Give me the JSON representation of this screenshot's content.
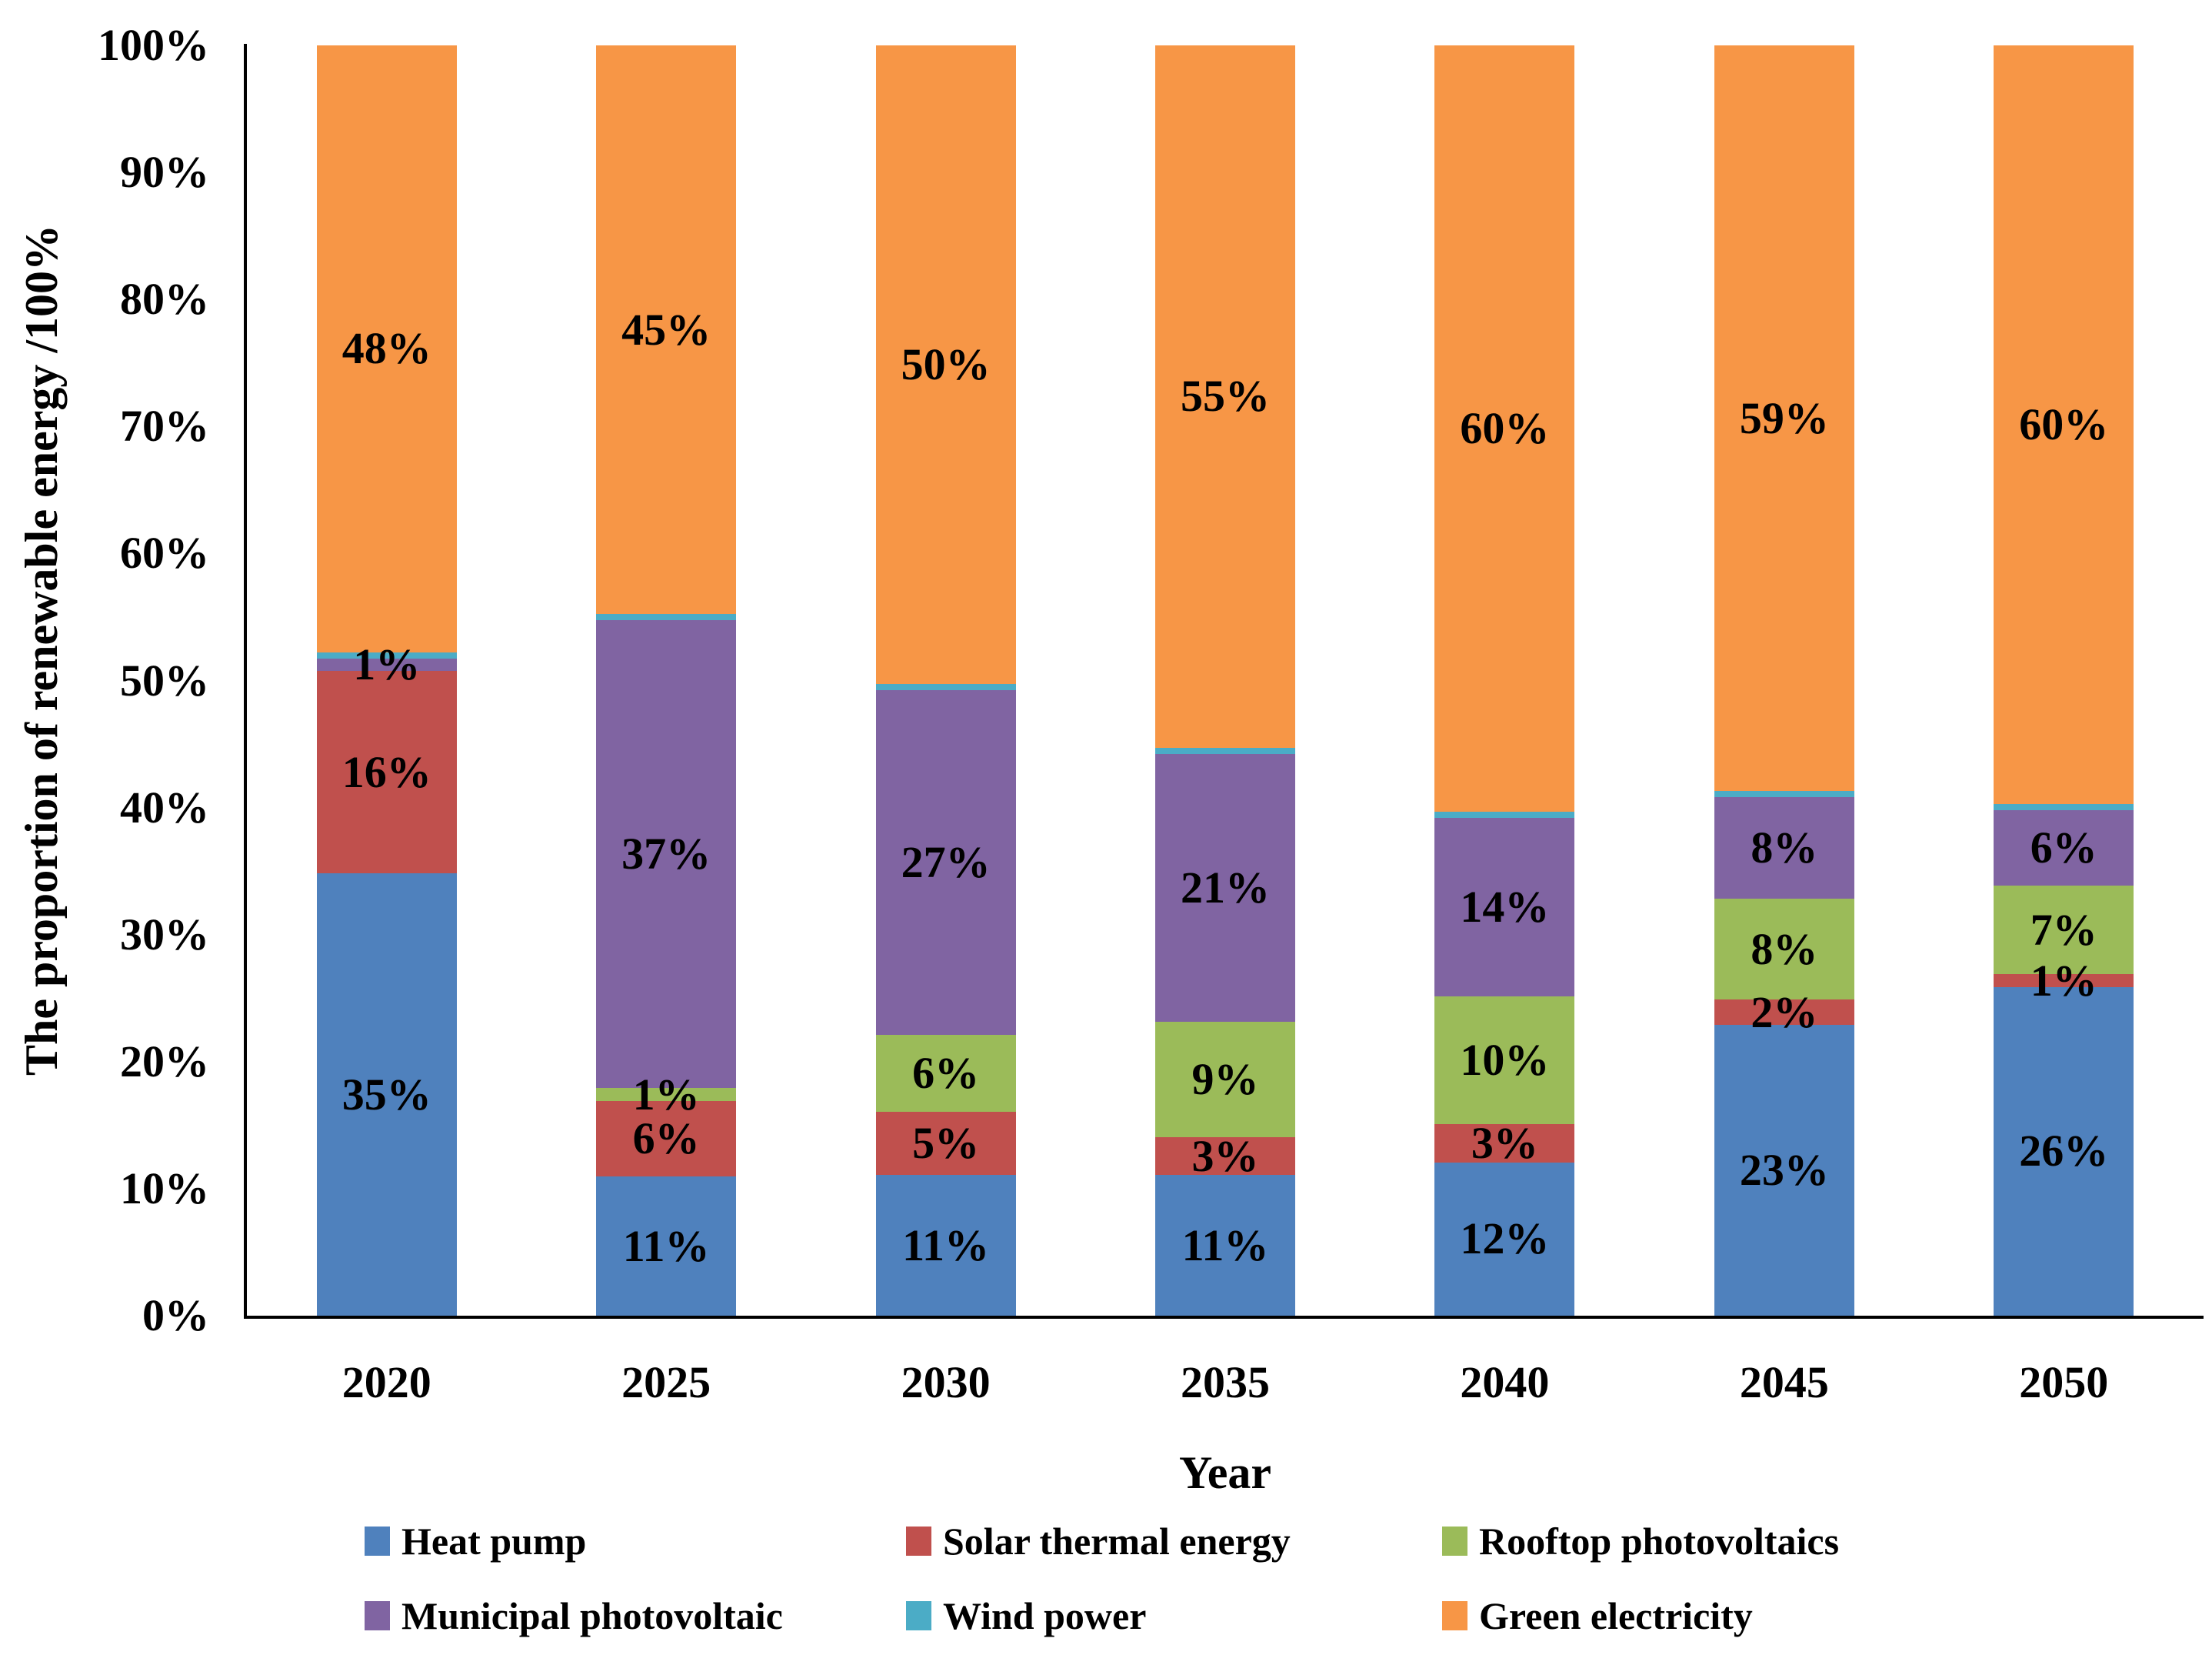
{
  "chart_data": {
    "type": "bar",
    "subtype": "stacked-100-percent",
    "title": "",
    "xlabel": "Year",
    "ylabel": "The proportion of renewable energy /100%",
    "categories": [
      "2020",
      "2025",
      "2030",
      "2035",
      "2040",
      "2045",
      "2050"
    ],
    "y_ticks": [
      "0%",
      "10%",
      "20%",
      "30%",
      "40%",
      "50%",
      "60%",
      "70%",
      "80%",
      "90%",
      "100%"
    ],
    "ylim": [
      0,
      100
    ],
    "grid": false,
    "legend_position": "bottom",
    "background_color": "#ffffff",
    "axis_color": "#000000",
    "series": [
      {
        "name": "Heat pump",
        "color": "#4F81BD",
        "values": [
          35,
          11,
          11,
          11,
          12,
          23,
          26
        ],
        "labels": [
          "35%",
          "11%",
          "11%",
          "11%",
          "12%",
          "23%",
          "26%"
        ]
      },
      {
        "name": "Solar thermal energy",
        "color": "#C0504D",
        "values": [
          16,
          6,
          5,
          3,
          3,
          2,
          1
        ],
        "labels": [
          "16%",
          "6%",
          "5%",
          "3%",
          "3%",
          "2%",
          "1%"
        ]
      },
      {
        "name": "Rooftop photovoltaics",
        "color": "#9BBB59",
        "values": [
          0,
          1,
          6,
          9,
          10,
          8,
          7
        ],
        "labels": [
          "",
          "1%",
          "6%",
          "9%",
          "10%",
          "8%",
          "7%"
        ]
      },
      {
        "name": "Municipal photovoltaic",
        "color": "#8064A2",
        "values": [
          1,
          37,
          27,
          21,
          14,
          8,
          6
        ],
        "labels": [
          "1%",
          "37%",
          "27%",
          "21%",
          "14%",
          "8%",
          "6%"
        ]
      },
      {
        "name": "Wind power",
        "color": "#4BACC6",
        "values": [
          0.5,
          0.5,
          0.5,
          0.5,
          0.5,
          0.5,
          0.5
        ],
        "labels": [
          "",
          "",
          "",
          "",
          "",
          "",
          ""
        ]
      },
      {
        "name": "Green electricity",
        "color": "#F79646",
        "values": [
          48,
          45,
          50,
          55,
          60,
          59,
          60
        ],
        "labels": [
          "48%",
          "45%",
          "50%",
          "55%",
          "60%",
          "59%",
          "60%"
        ]
      }
    ]
  }
}
